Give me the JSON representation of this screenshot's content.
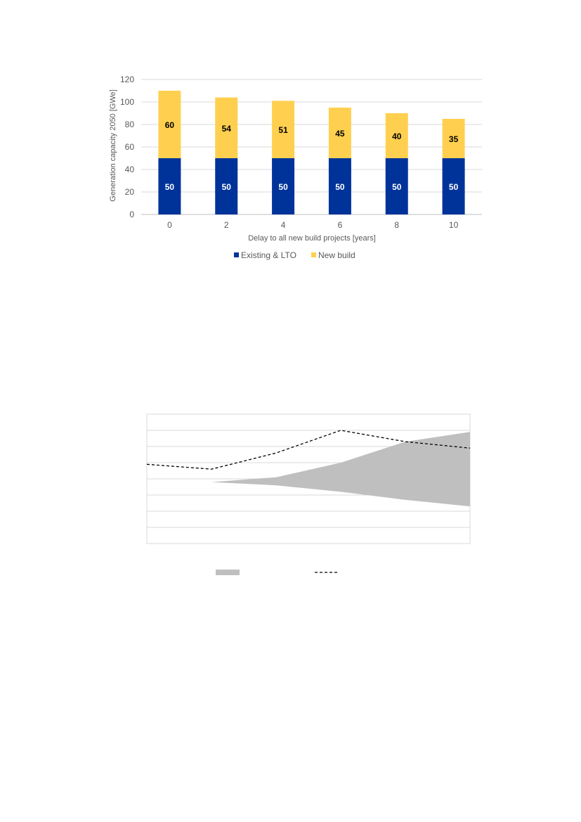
{
  "chart_data": [
    {
      "type": "bar",
      "stacked": true,
      "categories": [
        "0",
        "2",
        "4",
        "6",
        "8",
        "10"
      ],
      "series": [
        {
          "name": "Existing & LTO",
          "values": [
            50,
            50,
            50,
            50,
            50,
            50
          ],
          "color": "#003399"
        },
        {
          "name": "New build",
          "values": [
            60,
            54,
            51,
            45,
            40,
            35
          ],
          "color": "#FFD04F"
        }
      ],
      "xlabel": "Delay to all new build projects [years]",
      "ylabel": "Generation capacity 2050 [GWe]",
      "ylim": [
        0,
        120
      ],
      "yticks": [
        0,
        20,
        40,
        60,
        80,
        100,
        120
      ],
      "grid": true,
      "legend": "bottom"
    },
    {
      "type": "area",
      "x": [
        0,
        1,
        2,
        3,
        4,
        5
      ],
      "band_lower": [
        3.9,
        3.8,
        3.6,
        3.2,
        2.7,
        2.3
      ],
      "band_upper": [
        3.9,
        3.8,
        4.1,
        5.0,
        6.3,
        6.9
      ],
      "line": [
        4.9,
        4.6,
        5.6,
        7.0,
        6.3,
        5.9
      ],
      "ylim": [
        0,
        8
      ],
      "grid": true,
      "legend": "bottom",
      "colors": {
        "band": "#BFBFBF",
        "line": "#000000"
      }
    }
  ]
}
